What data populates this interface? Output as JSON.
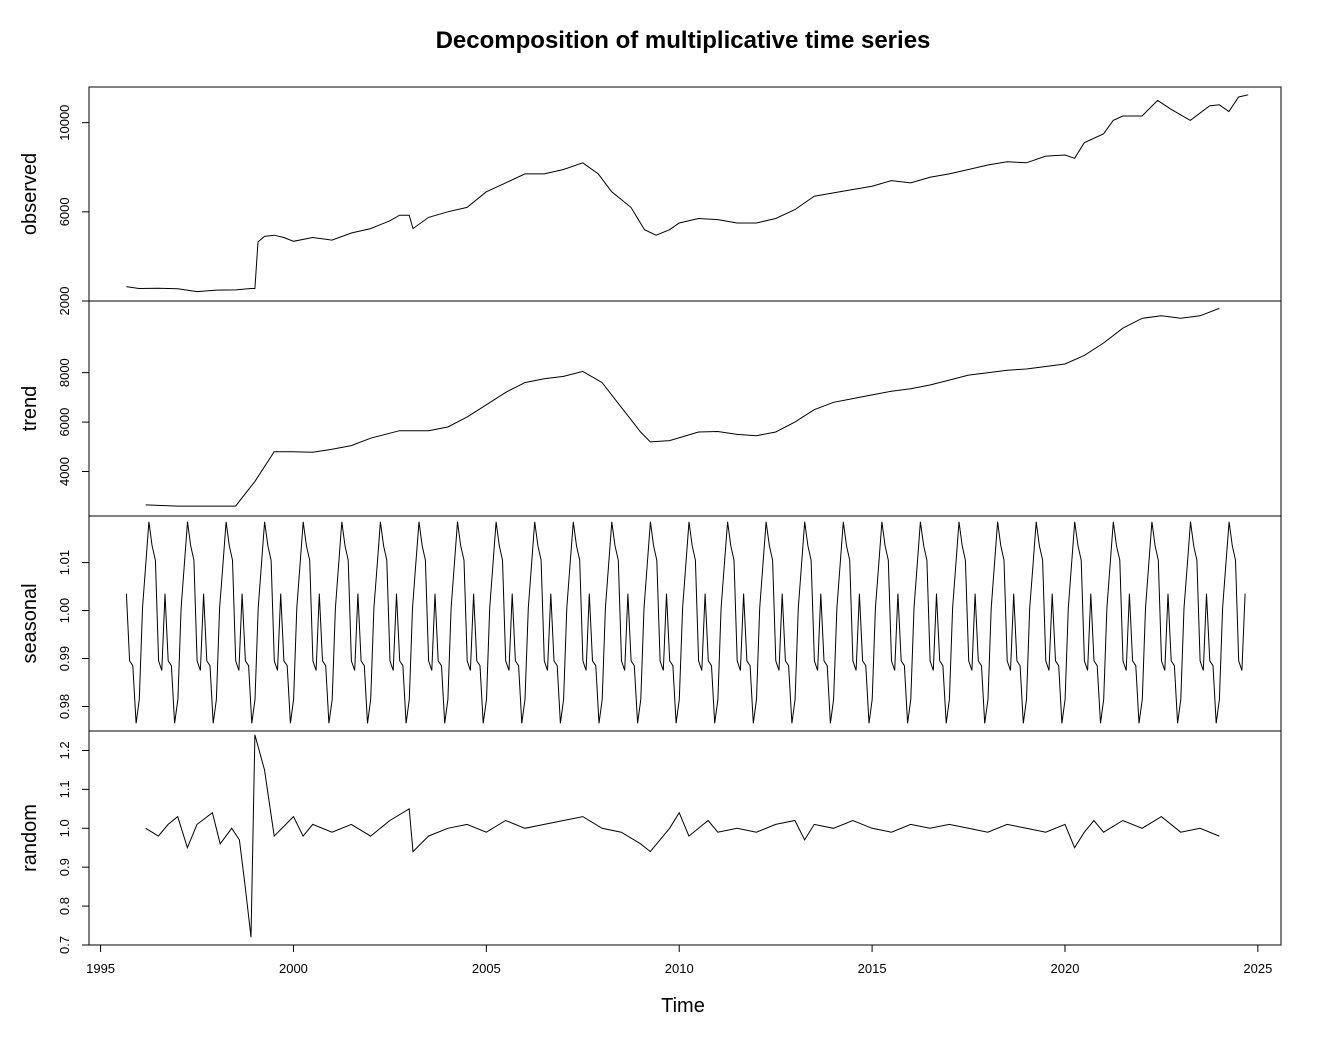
{
  "chart_data": {
    "type": "line",
    "title": "Decomposition of multiplicative time series",
    "xlabel": "Time",
    "x_ticks": [
      1995,
      2000,
      2005,
      2010,
      2015,
      2020,
      2025
    ],
    "xlim": [
      1994.7,
      2025.6
    ],
    "grid": false,
    "legend": "none",
    "panels": [
      {
        "name": "observed",
        "ylabel": "observed",
        "ylim": [
          2000,
          11600
        ],
        "y_ticks": [
          2000,
          6000,
          10000
        ],
        "series": [
          [
            1995.67,
            2640
          ],
          [
            1996.0,
            2560
          ],
          [
            1996.5,
            2570
          ],
          [
            1997.0,
            2550
          ],
          [
            1997.5,
            2420
          ],
          [
            1998.0,
            2490
          ],
          [
            1998.5,
            2500
          ],
          [
            1998.9,
            2560
          ],
          [
            1999.0,
            2560
          ],
          [
            1999.08,
            4650
          ],
          [
            1999.25,
            4900
          ],
          [
            1999.5,
            4950
          ],
          [
            1999.75,
            4850
          ],
          [
            2000.0,
            4680
          ],
          [
            2000.5,
            4850
          ],
          [
            2001.0,
            4730
          ],
          [
            2001.5,
            5050
          ],
          [
            2002.0,
            5250
          ],
          [
            2002.5,
            5600
          ],
          [
            2002.75,
            5850
          ],
          [
            2003.0,
            5850
          ],
          [
            2003.1,
            5250
          ],
          [
            2003.5,
            5750
          ],
          [
            2004.0,
            6000
          ],
          [
            2004.5,
            6200
          ],
          [
            2005.0,
            6900
          ],
          [
            2005.5,
            7300
          ],
          [
            2006.0,
            7700
          ],
          [
            2006.5,
            7700
          ],
          [
            2007.0,
            7900
          ],
          [
            2007.5,
            8200
          ],
          [
            2007.9,
            7700
          ],
          [
            2008.25,
            6900
          ],
          [
            2008.75,
            6200
          ],
          [
            2009.1,
            5200
          ],
          [
            2009.4,
            4950
          ],
          [
            2009.75,
            5200
          ],
          [
            2010.0,
            5500
          ],
          [
            2010.5,
            5700
          ],
          [
            2011.0,
            5650
          ],
          [
            2011.5,
            5500
          ],
          [
            2012.0,
            5500
          ],
          [
            2012.5,
            5700
          ],
          [
            2013.0,
            6100
          ],
          [
            2013.5,
            6700
          ],
          [
            2014.0,
            6850
          ],
          [
            2014.5,
            7000
          ],
          [
            2015.0,
            7150
          ],
          [
            2015.5,
            7400
          ],
          [
            2016.0,
            7300
          ],
          [
            2016.5,
            7550
          ],
          [
            2017.0,
            7700
          ],
          [
            2017.5,
            7900
          ],
          [
            2018.0,
            8100
          ],
          [
            2018.5,
            8250
          ],
          [
            2019.0,
            8200
          ],
          [
            2019.5,
            8500
          ],
          [
            2020.0,
            8550
          ],
          [
            2020.25,
            8400
          ],
          [
            2020.5,
            9100
          ],
          [
            2021.0,
            9500
          ],
          [
            2021.25,
            10100
          ],
          [
            2021.5,
            10300
          ],
          [
            2022.0,
            10300
          ],
          [
            2022.4,
            11000
          ],
          [
            2022.75,
            10600
          ],
          [
            2023.25,
            10100
          ],
          [
            2023.75,
            10750
          ],
          [
            2024.0,
            10800
          ],
          [
            2024.25,
            10500
          ],
          [
            2024.5,
            11150
          ],
          [
            2024.75,
            11250
          ]
        ]
      },
      {
        "name": "trend",
        "ylabel": "trend",
        "ylim": [
          2200,
          10900
        ],
        "y_ticks": [
          4000,
          6000,
          8000
        ],
        "series": [
          [
            1996.17,
            2650
          ],
          [
            1997.0,
            2600
          ],
          [
            1998.5,
            2600
          ],
          [
            1999.0,
            3600
          ],
          [
            1999.5,
            4800
          ],
          [
            2000.0,
            4800
          ],
          [
            2000.5,
            4780
          ],
          [
            2001.0,
            4900
          ],
          [
            2001.5,
            5050
          ],
          [
            2002.0,
            5350
          ],
          [
            2002.75,
            5650
          ],
          [
            2003.5,
            5650
          ],
          [
            2004.0,
            5800
          ],
          [
            2004.5,
            6200
          ],
          [
            2005.0,
            6700
          ],
          [
            2005.5,
            7200
          ],
          [
            2006.0,
            7600
          ],
          [
            2006.5,
            7750
          ],
          [
            2007.0,
            7850
          ],
          [
            2007.5,
            8050
          ],
          [
            2008.0,
            7600
          ],
          [
            2008.5,
            6600
          ],
          [
            2009.0,
            5600
          ],
          [
            2009.25,
            5200
          ],
          [
            2009.75,
            5250
          ],
          [
            2010.5,
            5600
          ],
          [
            2011.0,
            5620
          ],
          [
            2011.5,
            5500
          ],
          [
            2012.0,
            5450
          ],
          [
            2012.5,
            5600
          ],
          [
            2013.0,
            6000
          ],
          [
            2013.5,
            6500
          ],
          [
            2014.0,
            6800
          ],
          [
            2014.5,
            6950
          ],
          [
            2015.0,
            7100
          ],
          [
            2015.5,
            7250
          ],
          [
            2016.0,
            7350
          ],
          [
            2016.5,
            7500
          ],
          [
            2017.0,
            7700
          ],
          [
            2017.5,
            7900
          ],
          [
            2018.0,
            8000
          ],
          [
            2018.5,
            8100
          ],
          [
            2019.0,
            8150
          ],
          [
            2019.5,
            8250
          ],
          [
            2020.0,
            8350
          ],
          [
            2020.5,
            8700
          ],
          [
            2021.0,
            9200
          ],
          [
            2021.5,
            9800
          ],
          [
            2022.0,
            10200
          ],
          [
            2022.5,
            10300
          ],
          [
            2023.0,
            10200
          ],
          [
            2023.5,
            10300
          ],
          [
            2024.0,
            10600
          ]
        ]
      },
      {
        "name": "seasonal",
        "ylabel": "seasonal",
        "ylim": [
          0.9749,
          1.0197
        ],
        "y_ticks": [
          0.98,
          0.99,
          1.0,
          1.01
        ],
        "y_tick_labels": [
          "0.98",
          "0.99",
          "1.00",
          "1.01"
        ],
        "period": 1.0,
        "start": 1995.67,
        "end": 2024.67,
        "pattern": [
          1.0035,
          0.9895,
          0.9885,
          0.9765,
          0.9815,
          1.0005,
          1.0095,
          1.0185,
          1.0135,
          1.0105,
          0.9895,
          0.9875
        ]
      },
      {
        "name": "random",
        "ylabel": "random",
        "ylim": [
          0.7,
          1.25
        ],
        "y_ticks": [
          0.7,
          0.8,
          0.9,
          1.0,
          1.1,
          1.2
        ],
        "y_tick_labels": [
          "0.7",
          "0.8",
          "0.9",
          "1.0",
          "1.1",
          "1.2"
        ],
        "series": [
          [
            1996.17,
            1.0
          ],
          [
            1996.5,
            0.98
          ],
          [
            1996.75,
            1.01
          ],
          [
            1997.0,
            1.03
          ],
          [
            1997.25,
            0.95
          ],
          [
            1997.5,
            1.01
          ],
          [
            1997.9,
            1.04
          ],
          [
            1998.1,
            0.96
          ],
          [
            1998.4,
            1.0
          ],
          [
            1998.6,
            0.97
          ],
          [
            1998.75,
            0.85
          ],
          [
            1998.9,
            0.72
          ],
          [
            1999.0,
            1.24
          ],
          [
            1999.25,
            1.15
          ],
          [
            1999.5,
            0.98
          ],
          [
            2000.0,
            1.03
          ],
          [
            2000.25,
            0.98
          ],
          [
            2000.5,
            1.01
          ],
          [
            2001.0,
            0.99
          ],
          [
            2001.5,
            1.01
          ],
          [
            2002.0,
            0.98
          ],
          [
            2002.5,
            1.02
          ],
          [
            2003.0,
            1.05
          ],
          [
            2003.1,
            0.94
          ],
          [
            2003.5,
            0.98
          ],
          [
            2004.0,
            1.0
          ],
          [
            2004.5,
            1.01
          ],
          [
            2005.0,
            0.99
          ],
          [
            2005.5,
            1.02
          ],
          [
            2006.0,
            1.0
          ],
          [
            2006.5,
            1.01
          ],
          [
            2007.0,
            1.02
          ],
          [
            2007.5,
            1.03
          ],
          [
            2008.0,
            1.0
          ],
          [
            2008.5,
            0.99
          ],
          [
            2009.0,
            0.96
          ],
          [
            2009.25,
            0.94
          ],
          [
            2009.75,
            1.0
          ],
          [
            2010.0,
            1.04
          ],
          [
            2010.25,
            0.98
          ],
          [
            2010.75,
            1.02
          ],
          [
            2011.0,
            0.99
          ],
          [
            2011.5,
            1.0
          ],
          [
            2012.0,
            0.99
          ],
          [
            2012.5,
            1.01
          ],
          [
            2013.0,
            1.02
          ],
          [
            2013.25,
            0.97
          ],
          [
            2013.5,
            1.01
          ],
          [
            2014.0,
            1.0
          ],
          [
            2014.5,
            1.02
          ],
          [
            2015.0,
            1.0
          ],
          [
            2015.5,
            0.99
          ],
          [
            2016.0,
            1.01
          ],
          [
            2016.5,
            1.0
          ],
          [
            2017.0,
            1.01
          ],
          [
            2017.5,
            1.0
          ],
          [
            2018.0,
            0.99
          ],
          [
            2018.5,
            1.01
          ],
          [
            2019.0,
            1.0
          ],
          [
            2019.5,
            0.99
          ],
          [
            2020.0,
            1.01
          ],
          [
            2020.25,
            0.95
          ],
          [
            2020.5,
            0.99
          ],
          [
            2020.75,
            1.02
          ],
          [
            2021.0,
            0.99
          ],
          [
            2021.5,
            1.02
          ],
          [
            2022.0,
            1.0
          ],
          [
            2022.5,
            1.03
          ],
          [
            2023.0,
            0.99
          ],
          [
            2023.5,
            1.0
          ],
          [
            2024.0,
            0.98
          ]
        ]
      }
    ]
  }
}
